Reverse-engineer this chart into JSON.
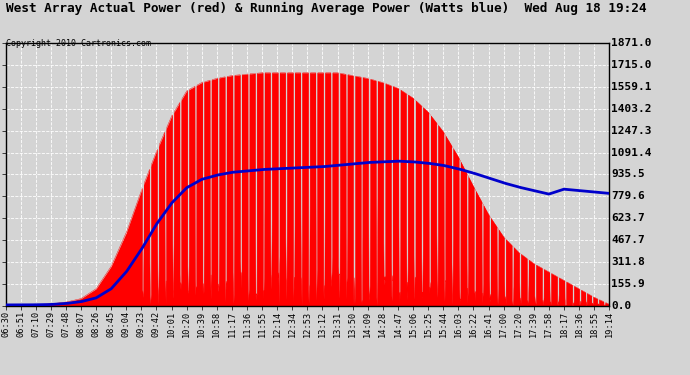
{
  "title": "West Array Actual Power (red) & Running Average Power (Watts blue)  Wed Aug 18 19:24",
  "copyright": "Copyright 2010 Cartronics.com",
  "ytick_values": [
    0.0,
    155.9,
    311.8,
    467.7,
    623.7,
    779.6,
    935.5,
    1091.4,
    1247.3,
    1403.2,
    1559.1,
    1715.0,
    1871.0
  ],
  "ytick_labels": [
    "0.0",
    "155.9",
    "311.8",
    "467.7",
    "623.7",
    "779.6",
    "935.5",
    "1091.4",
    "1247.3",
    "1403.2",
    "1559.1",
    "1715.0",
    "1871.0"
  ],
  "ymax": 1871.0,
  "ymin": 0.0,
  "bg_color": "#d4d4d4",
  "red_color": "#ff0000",
  "blue_color": "#0000cc",
  "xtick_labels": [
    "06:30",
    "06:51",
    "07:10",
    "07:29",
    "07:48",
    "08:07",
    "08:26",
    "08:45",
    "09:04",
    "09:23",
    "09:42",
    "10:01",
    "10:20",
    "10:39",
    "10:58",
    "11:17",
    "11:36",
    "11:55",
    "12:14",
    "12:34",
    "12:53",
    "13:12",
    "13:31",
    "13:50",
    "14:09",
    "14:28",
    "14:47",
    "15:06",
    "15:25",
    "15:44",
    "16:03",
    "16:22",
    "16:41",
    "17:00",
    "17:20",
    "17:39",
    "17:58",
    "18:17",
    "18:36",
    "18:55",
    "19:14"
  ],
  "envelope": [
    5,
    5,
    8,
    12,
    25,
    50,
    120,
    280,
    520,
    820,
    1100,
    1350,
    1530,
    1590,
    1620,
    1640,
    1650,
    1660,
    1660,
    1660,
    1660,
    1660,
    1660,
    1640,
    1620,
    1590,
    1550,
    1480,
    1380,
    1240,
    1060,
    850,
    650,
    490,
    380,
    300,
    240,
    180,
    120,
    60,
    10
  ],
  "running_avg": [
    5,
    5,
    6,
    8,
    15,
    28,
    55,
    120,
    240,
    400,
    580,
    730,
    840,
    900,
    930,
    950,
    960,
    970,
    975,
    980,
    985,
    990,
    1000,
    1010,
    1020,
    1025,
    1030,
    1025,
    1015,
    1000,
    975,
    945,
    910,
    875,
    845,
    820,
    795,
    830,
    820,
    810,
    800
  ]
}
